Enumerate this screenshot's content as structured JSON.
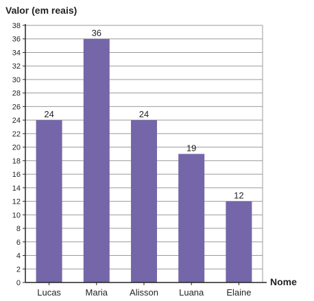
{
  "chart_data": {
    "type": "bar",
    "title": "",
    "ylabel": "Valor (em reais)",
    "xlabel": "Nome",
    "categories": [
      "Lucas",
      "Maria",
      "Alisson",
      "Luana",
      "Elaine"
    ],
    "values": [
      24,
      36,
      24,
      19,
      12
    ],
    "data_labels": [
      "24",
      "36",
      "24",
      "19",
      "12"
    ],
    "ylim": [
      0,
      38
    ],
    "ytick_step": 2,
    "grid": true,
    "legend": "none",
    "colors": {
      "bar": "#7466a8",
      "grid": "#999999",
      "axis": "#222222"
    }
  }
}
